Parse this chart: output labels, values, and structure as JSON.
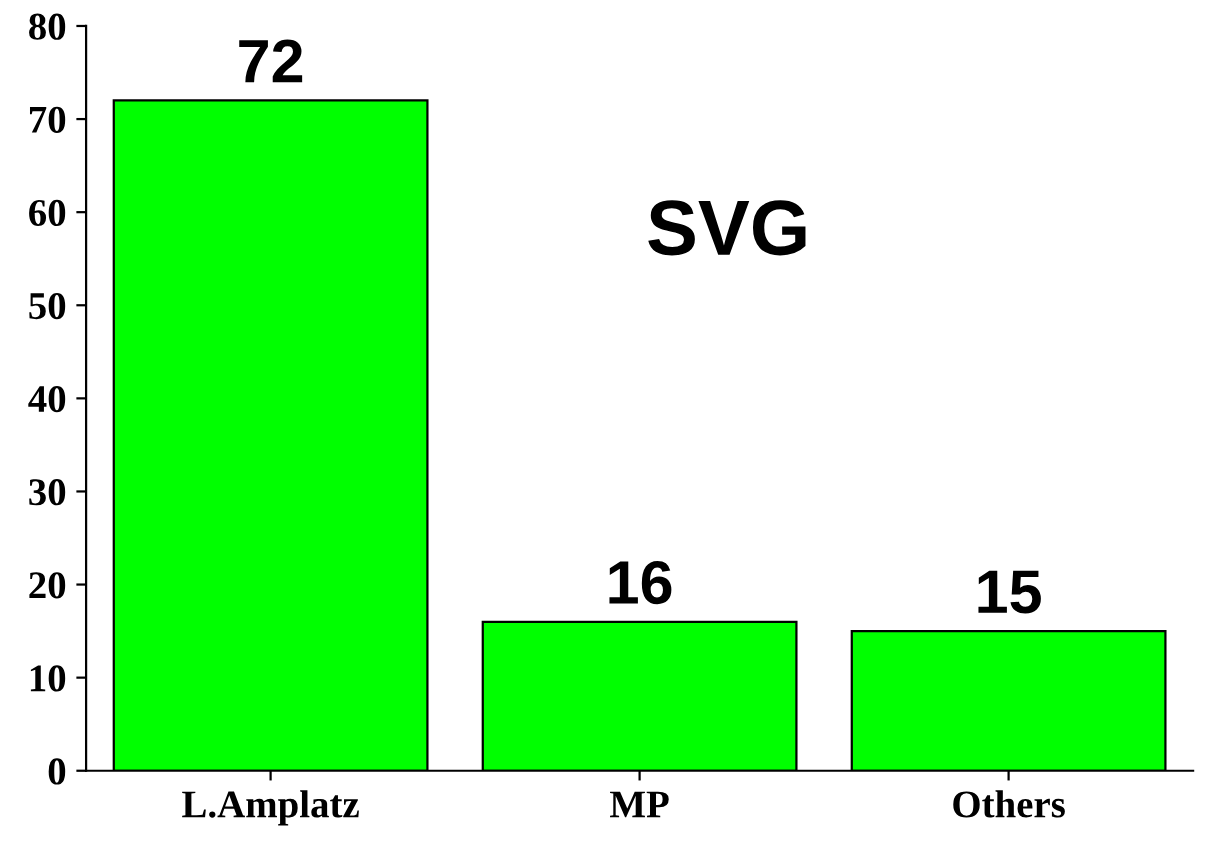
{
  "chart_data": {
    "type": "bar",
    "categories": [
      "L.Amplatz",
      "MP",
      "Others"
    ],
    "values": [
      72,
      16,
      15
    ],
    "color": "#00ff00",
    "ylim": [
      0,
      80
    ],
    "yticks": [
      0,
      10,
      20,
      30,
      40,
      50,
      60,
      70,
      80
    ],
    "grid": false,
    "data_labels": true,
    "annotations": [
      "SVG"
    ]
  }
}
